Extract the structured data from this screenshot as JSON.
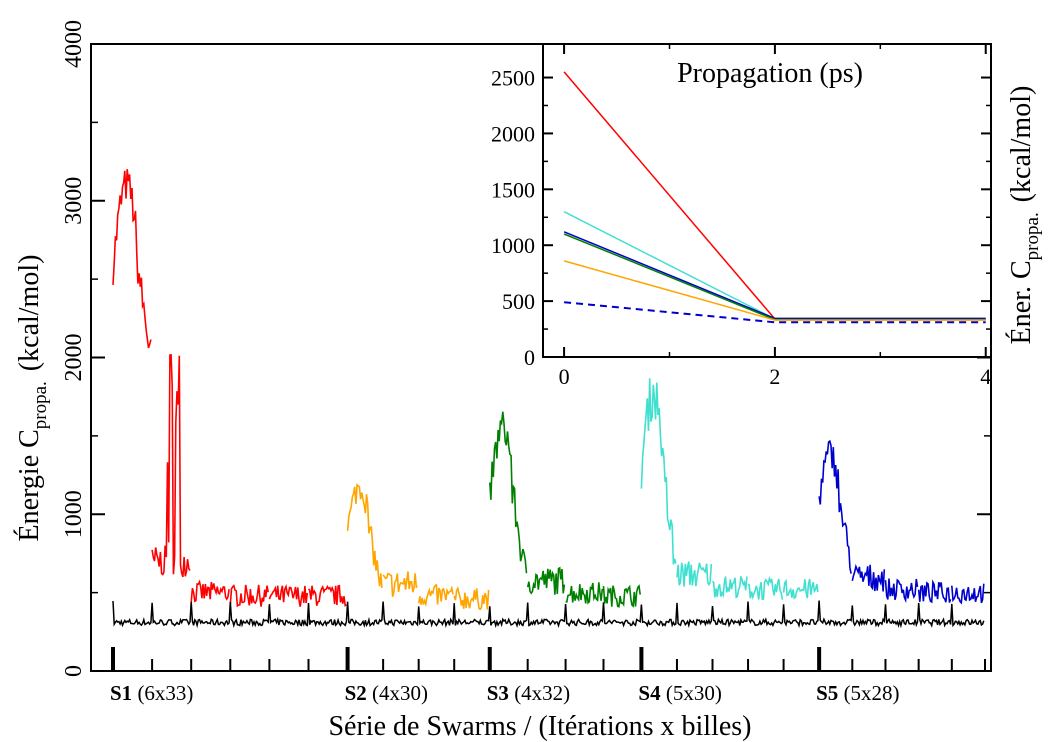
{
  "chart_data": [
    {
      "type": "line",
      "ylabel_main": "Énergie C",
      "ylabel_sub": "propa.",
      "ylabel_unit": "(kcal/mol)",
      "xlabel": "Série de Swarms / (Itérations x billes)",
      "ylim": [
        0,
        4000
      ],
      "yticks": [
        0,
        1000,
        2000,
        3000,
        4000
      ],
      "ytick_labels": [
        "0",
        "1000",
        "2000",
        "3000",
        "4000"
      ],
      "series_groups": [
        {
          "id": "S1",
          "label_bold": "S1",
          "label_rest": "(6x33)",
          "iterations": 6,
          "beads": 33,
          "color": "#ff0000",
          "start_mean": 2580,
          "start_spread": 260,
          "start_peak": 3200,
          "converged": 500,
          "spike": 2100
        },
        {
          "id": "S2",
          "label_bold": "S2",
          "label_rest": "(4x30)",
          "iterations": 4,
          "beads": 30,
          "color": "#ffa500",
          "start_mean": 900,
          "start_spread": 200,
          "start_peak": 1250,
          "converged": 480,
          "spike": 0
        },
        {
          "id": "S3",
          "label_bold": "S3",
          "label_rest": "(4x32)",
          "iterations": 4,
          "beads": 32,
          "color": "#008000",
          "start_mean": 1100,
          "start_spread": 250,
          "start_peak": 1650,
          "converged": 500,
          "spike": 0
        },
        {
          "id": "S4",
          "label_bold": "S4",
          "label_rest": "(5x30)",
          "iterations": 5,
          "beads": 30,
          "color": "#40e0d0",
          "start_mean": 1300,
          "start_spread": 350,
          "start_peak": 1900,
          "converged": 540,
          "spike": 0
        },
        {
          "id": "S5",
          "label_bold": "S5",
          "label_rest": "(5x28)",
          "iterations": 5,
          "beads": 28,
          "color": "#0000cd",
          "start_mean": 1100,
          "start_spread": 220,
          "start_peak": 1470,
          "converged": 520,
          "spike": 0
        }
      ],
      "baseline": {
        "color": "#000000",
        "value": 310,
        "spike_value": 430
      }
    },
    {
      "type": "line",
      "title": "Propagation (ps)",
      "ylabel_main": "Éner. C",
      "ylabel_sub": "propa.",
      "ylabel_unit": "(kcal/mol)",
      "xlim": [
        -0.2,
        4.05
      ],
      "ylim": [
        0,
        2800
      ],
      "xticks": [
        0,
        2,
        4
      ],
      "xtick_labels": [
        "0",
        "2",
        "4"
      ],
      "yticks": [
        0,
        500,
        1000,
        1500,
        2000,
        2500
      ],
      "ytick_labels": [
        "0",
        "500",
        "1000",
        "1500",
        "2000",
        "2500"
      ],
      "x": [
        0,
        2,
        4
      ],
      "series": [
        {
          "color": "#ff0000",
          "dashed": false,
          "values": [
            2550,
            340,
            340
          ]
        },
        {
          "color": "#40e0d0",
          "dashed": false,
          "values": [
            1300,
            340,
            340
          ]
        },
        {
          "color": "#0000cd",
          "dashed": false,
          "values": [
            1120,
            345,
            345
          ]
        },
        {
          "color": "#008000",
          "dashed": false,
          "values": [
            1100,
            335,
            335
          ]
        },
        {
          "color": "#ffa500",
          "dashed": false,
          "values": [
            860,
            330,
            330
          ]
        },
        {
          "color": "#0000cd",
          "dashed": true,
          "values": [
            490,
            310,
            310
          ]
        }
      ]
    }
  ]
}
